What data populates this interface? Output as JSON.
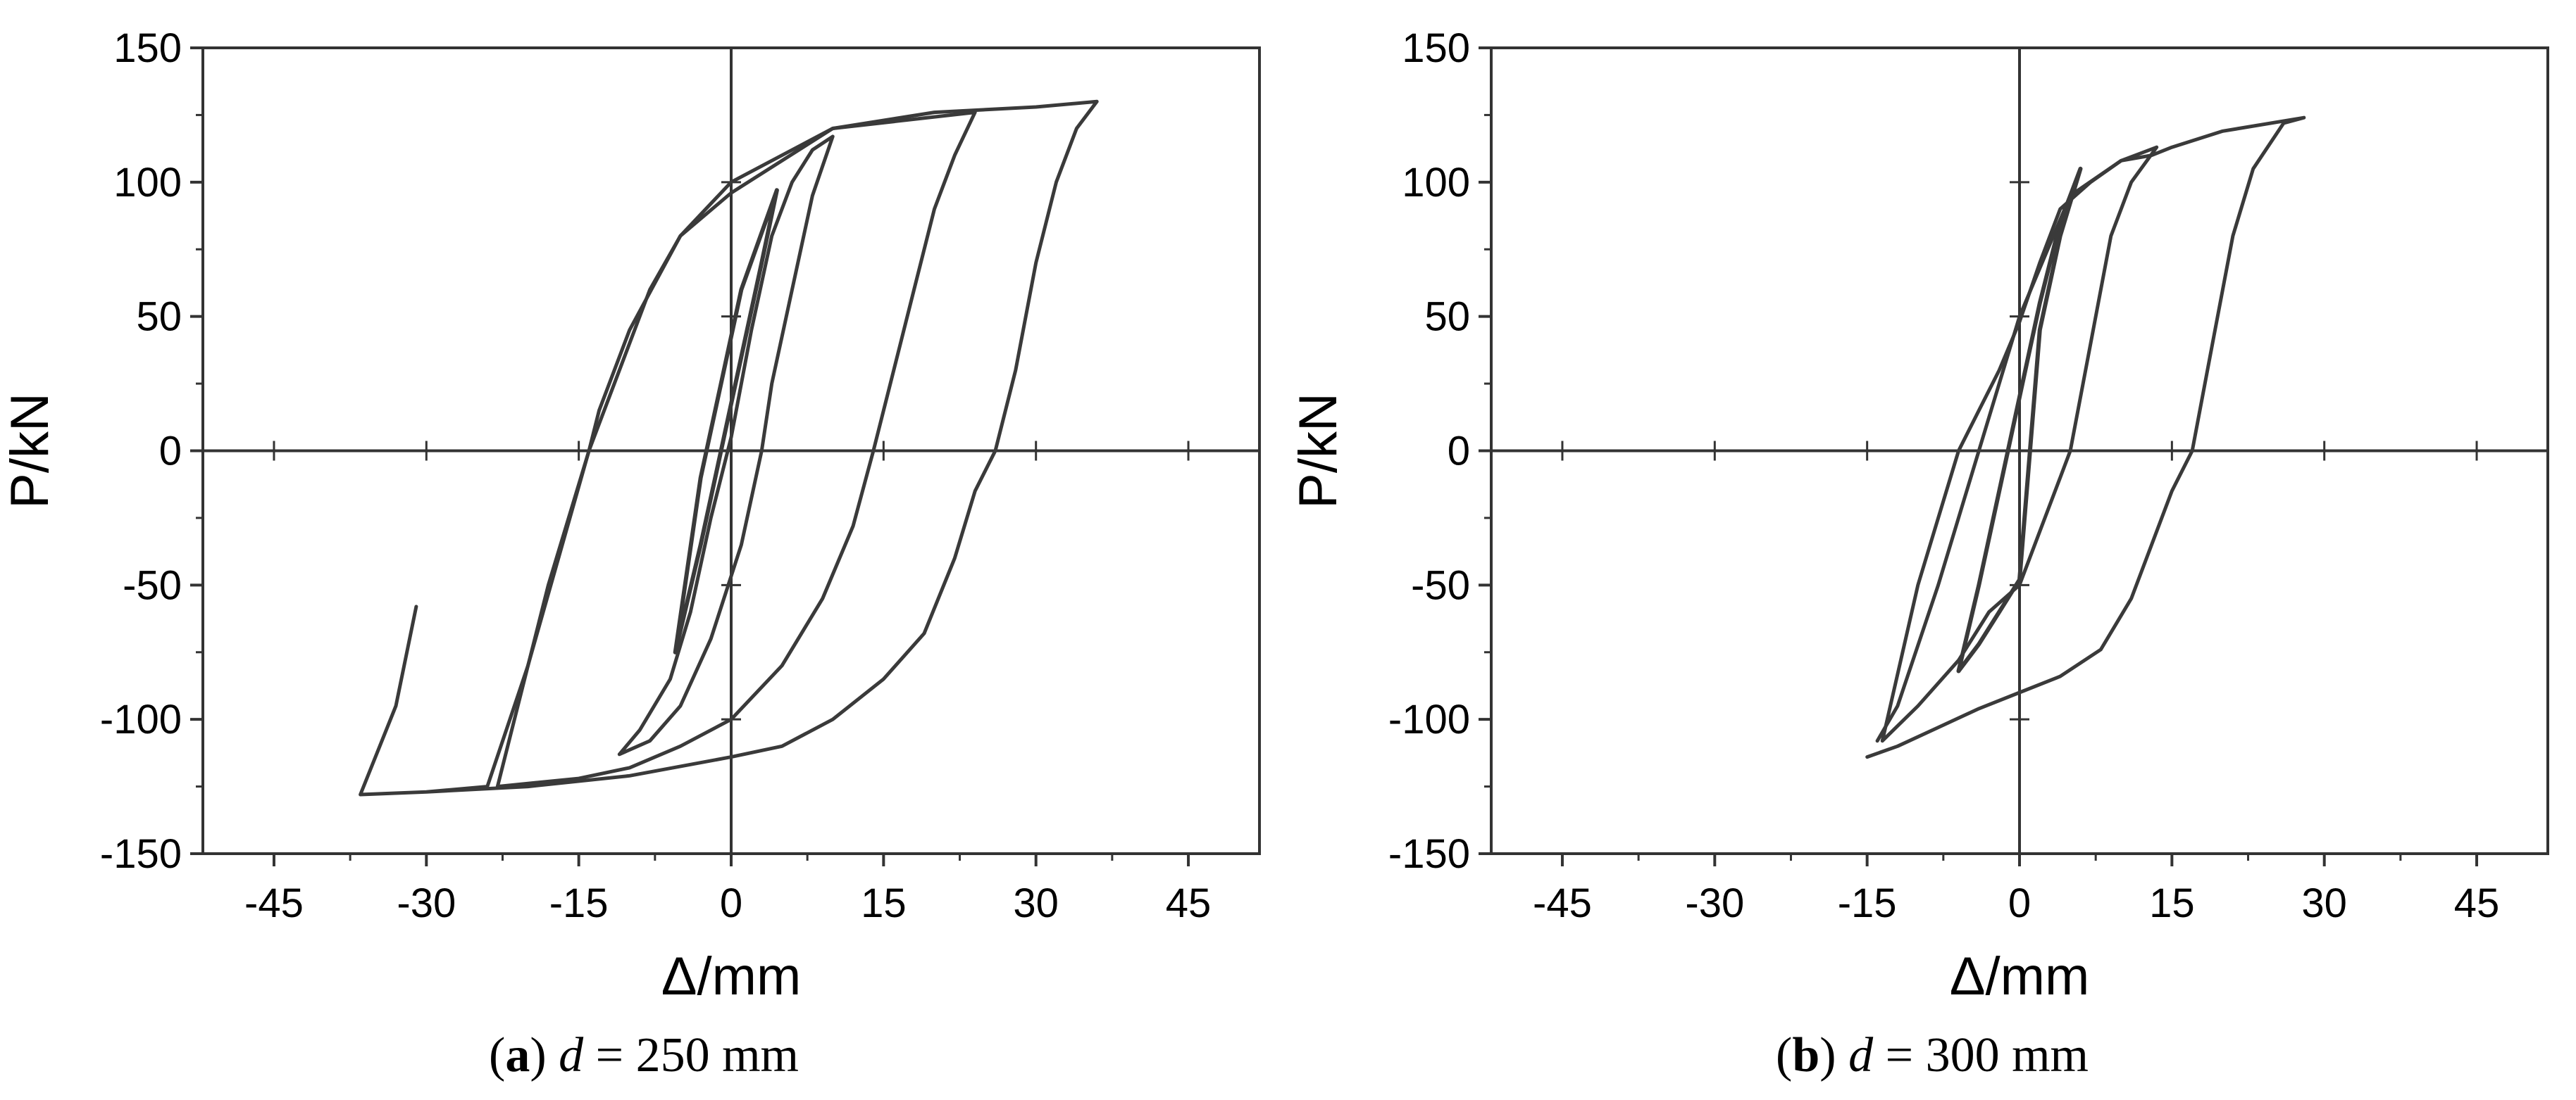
{
  "figure": {
    "panels": [
      {
        "caption_letter": "a",
        "caption_var": "d",
        "caption_rest": " = 250 mm"
      },
      {
        "caption_letter": "b",
        "caption_var": "d",
        "caption_rest": " = 300 mm"
      }
    ]
  },
  "chart_data": [
    {
      "type": "line",
      "title": "",
      "xlabel": "Δ/mm",
      "ylabel": "P/kN",
      "xlim": [
        -52,
        52
      ],
      "ylim": [
        -150,
        150
      ],
      "xticks": [
        -45,
        -30,
        -15,
        0,
        15,
        30,
        45
      ],
      "yticks": [
        150,
        100,
        50,
        0,
        -50,
        -100,
        -150
      ],
      "grid": false,
      "origin_axes": true,
      "line_color": "#3a3a3a",
      "series": [
        {
          "values": [
            [
              -5.5,
              -75
            ],
            [
              -3,
              -35
            ],
            [
              -1,
              0
            ],
            [
              1,
              35
            ],
            [
              3,
              70
            ],
            [
              4.5,
              97
            ],
            [
              1,
              60
            ],
            [
              -1,
              25
            ],
            [
              -3,
              -10
            ],
            [
              -5.5,
              -75
            ]
          ]
        },
        {
          "values": [
            [
              -11,
              -113
            ],
            [
              -9,
              -104
            ],
            [
              -6,
              -85
            ],
            [
              -4,
              -60
            ],
            [
              -2,
              -25
            ],
            [
              0,
              5
            ],
            [
              2,
              45
            ],
            [
              4,
              80
            ],
            [
              6,
              100
            ],
            [
              8,
              112
            ],
            [
              10,
              117
            ],
            [
              8,
              95
            ],
            [
              6,
              60
            ],
            [
              4,
              25
            ],
            [
              3,
              0
            ],
            [
              1,
              -35
            ],
            [
              -2,
              -70
            ],
            [
              -5,
              -95
            ],
            [
              -8,
              -108
            ],
            [
              -11,
              -113
            ]
          ]
        },
        {
          "values": [
            [
              -23,
              -125
            ],
            [
              -15,
              -122
            ],
            [
              -10,
              -118
            ],
            [
              -5,
              -110
            ],
            [
              0,
              -100
            ],
            [
              5,
              -80
            ],
            [
              9,
              -55
            ],
            [
              12,
              -28
            ],
            [
              14,
              0
            ],
            [
              16,
              30
            ],
            [
              18,
              60
            ],
            [
              20,
              90
            ],
            [
              22,
              110
            ],
            [
              24,
              126
            ],
            [
              10,
              120
            ],
            [
              0,
              100
            ],
            [
              -5,
              80
            ],
            [
              -10,
              45
            ],
            [
              -13,
              15
            ],
            [
              -14,
              0
            ],
            [
              -18,
              -50
            ],
            [
              -23,
              -125
            ]
          ]
        },
        {
          "values": [
            [
              -36.5,
              -128
            ],
            [
              -30,
              -127
            ],
            [
              -20,
              -125
            ],
            [
              -10,
              -121
            ],
            [
              0,
              -114
            ],
            [
              5,
              -110
            ],
            [
              10,
              -100
            ],
            [
              15,
              -85
            ],
            [
              19,
              -68
            ],
            [
              22,
              -40
            ],
            [
              24,
              -15
            ],
            [
              26,
              0
            ],
            [
              28,
              30
            ],
            [
              30,
              70
            ],
            [
              32,
              100
            ],
            [
              34,
              120
            ],
            [
              36,
              130
            ],
            [
              30,
              128
            ],
            [
              20,
              126
            ],
            [
              10,
              120
            ],
            [
              0,
              96
            ],
            [
              -5,
              80
            ],
            [
              -8,
              60
            ],
            [
              -10,
              40
            ],
            [
              -12,
              20
            ],
            [
              -14,
              0
            ],
            [
              -17,
              -40
            ],
            [
              -20,
              -80
            ],
            [
              -24,
              -125
            ],
            [
              -30,
              -127
            ],
            [
              -36.5,
              -128
            ],
            [
              -33,
              -95
            ],
            [
              -31,
              -58
            ]
          ]
        }
      ]
    },
    {
      "type": "line",
      "title": "",
      "xlabel": "Δ/mm",
      "ylabel": "P/kN",
      "xlim": [
        -52,
        52
      ],
      "ylim": [
        -150,
        150
      ],
      "xticks": [
        -45,
        -30,
        -15,
        0,
        15,
        30,
        45
      ],
      "yticks": [
        150,
        100,
        50,
        0,
        -50,
        -100,
        -150
      ],
      "grid": false,
      "origin_axes": true,
      "line_color": "#3a3a3a",
      "series": [
        {
          "values": [
            [
              -6,
              -82
            ],
            [
              -4,
              -50
            ],
            [
              -2,
              -15
            ],
            [
              0,
              20
            ],
            [
              2,
              55
            ],
            [
              4,
              85
            ],
            [
              6,
              105
            ],
            [
              4,
              80
            ],
            [
              2,
              45
            ],
            [
              0,
              -48
            ],
            [
              -2,
              -60
            ],
            [
              -4,
              -72
            ],
            [
              -6,
              -82
            ]
          ]
        },
        {
          "values": [
            [
              -13.5,
              -108
            ],
            [
              -10,
              -95
            ],
            [
              -6,
              -78
            ],
            [
              -3,
              -60
            ],
            [
              0,
              -50
            ],
            [
              2,
              -30
            ],
            [
              4,
              -10
            ],
            [
              5,
              0
            ],
            [
              7,
              40
            ],
            [
              9,
              80
            ],
            [
              11,
              100
            ],
            [
              13.5,
              113
            ],
            [
              10,
              108
            ],
            [
              7,
              100
            ],
            [
              4,
              90
            ],
            [
              2,
              70
            ],
            [
              0,
              48
            ],
            [
              -2,
              30
            ],
            [
              -4,
              15
            ],
            [
              -6,
              0
            ],
            [
              -10,
              -50
            ],
            [
              -13.5,
              -108
            ]
          ]
        },
        {
          "values": [
            [
              -15,
              -114
            ],
            [
              -12,
              -110
            ],
            [
              -8,
              -103
            ],
            [
              -4,
              -96
            ],
            [
              0,
              -90
            ],
            [
              4,
              -84
            ],
            [
              8,
              -74
            ],
            [
              11,
              -55
            ],
            [
              13,
              -35
            ],
            [
              15,
              -15
            ],
            [
              17,
              0
            ],
            [
              19,
              40
            ],
            [
              21,
              80
            ],
            [
              23,
              105
            ],
            [
              26,
              122
            ],
            [
              28,
              124
            ],
            [
              20,
              119
            ],
            [
              15,
              113
            ],
            [
              13,
              110
            ],
            [
              10,
              108
            ],
            [
              5,
              95
            ],
            [
              0,
              50
            ],
            [
              -4,
              0
            ],
            [
              -8,
              -50
            ],
            [
              -12,
              -95
            ],
            [
              -14,
              -108
            ]
          ]
        }
      ]
    }
  ]
}
